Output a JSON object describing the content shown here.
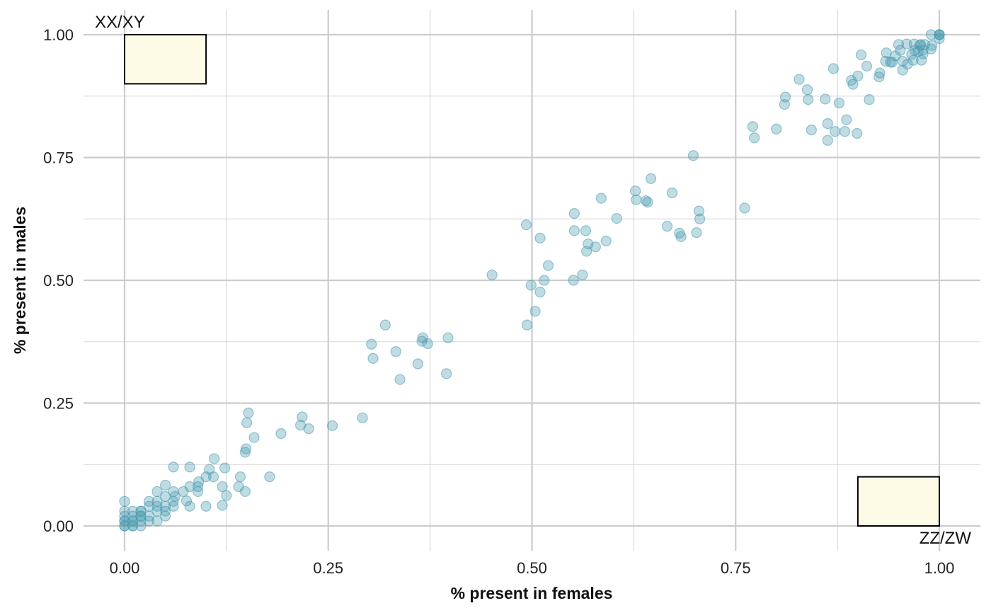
{
  "chart_data": {
    "type": "scatter",
    "xlabel": "% present in females",
    "ylabel": "% present in males",
    "xlim": [
      -0.05,
      1.05
    ],
    "ylim": [
      -0.05,
      1.05
    ],
    "x_ticks": [
      "0.00",
      "0.25",
      "0.50",
      "0.75",
      "1.00"
    ],
    "y_ticks": [
      "0.00",
      "0.25",
      "0.50",
      "0.75",
      "1.00"
    ],
    "grid": true,
    "point_color": "#4a9bb0",
    "box_fill": "#fdfbe6",
    "annotations": [
      {
        "label": "XX/XY",
        "x_range": [
          0.0,
          0.1
        ],
        "y_range": [
          0.9,
          1.0
        ]
      },
      {
        "label": "ZZ/ZW",
        "x_range": [
          0.9,
          1.0
        ],
        "y_range": [
          0.0,
          0.1
        ]
      }
    ],
    "points": [
      [
        0,
        0
      ],
      [
        0,
        0
      ],
      [
        0,
        0.01
      ],
      [
        0,
        0.01
      ],
      [
        0,
        0.02
      ],
      [
        0,
        0.03
      ],
      [
        0,
        0.05
      ],
      [
        0.01,
        0
      ],
      [
        0.01,
        0
      ],
      [
        0.01,
        0.01
      ],
      [
        0.01,
        0.01
      ],
      [
        0.01,
        0.02
      ],
      [
        0.01,
        0.03
      ],
      [
        0.02,
        0
      ],
      [
        0.02,
        0.01
      ],
      [
        0.02,
        0.02
      ],
      [
        0.02,
        0.02
      ],
      [
        0.02,
        0.03
      ],
      [
        0.02,
        0.03
      ],
      [
        0.03,
        0.01
      ],
      [
        0.03,
        0.02
      ],
      [
        0.03,
        0.04
      ],
      [
        0.03,
        0.05
      ],
      [
        0.04,
        0.01
      ],
      [
        0.04,
        0.03
      ],
      [
        0.04,
        0.04
      ],
      [
        0.04,
        0.05
      ],
      [
        0.04,
        0.07
      ],
      [
        0.05,
        0.02
      ],
      [
        0.05,
        0.03
      ],
      [
        0.05,
        0.04
      ],
      [
        0.05,
        0.06
      ],
      [
        0.05,
        0.083
      ],
      [
        0.06,
        0.04
      ],
      [
        0.06,
        0.05
      ],
      [
        0.06,
        0.07
      ],
      [
        0.06,
        0.12
      ],
      [
        0.062,
        0.06
      ],
      [
        0.072,
        0.07
      ],
      [
        0.076,
        0.051
      ],
      [
        0.08,
        0.04
      ],
      [
        0.08,
        0.08
      ],
      [
        0.08,
        0.12
      ],
      [
        0.09,
        0.07
      ],
      [
        0.09,
        0.08
      ],
      [
        0.091,
        0.09
      ],
      [
        0.1,
        0.1
      ],
      [
        0.1,
        0.04
      ],
      [
        0.104,
        0.115
      ],
      [
        0.109,
        0.1
      ],
      [
        0.11,
        0.137
      ],
      [
        0.12,
        0.08
      ],
      [
        0.12,
        0.042
      ],
      [
        0.123,
        0.118
      ],
      [
        0.125,
        0.062
      ],
      [
        0.14,
        0.08
      ],
      [
        0.142,
        0.1
      ],
      [
        0.148,
        0.07
      ],
      [
        0.148,
        0.15
      ],
      [
        0.149,
        0.157
      ],
      [
        0.15,
        0.21
      ],
      [
        0.152,
        0.23
      ],
      [
        0.159,
        0.18
      ],
      [
        0.178,
        0.1
      ],
      [
        0.192,
        0.188
      ],
      [
        0.216,
        0.205
      ],
      [
        0.218,
        0.222
      ],
      [
        0.226,
        0.198
      ],
      [
        0.255,
        0.204
      ],
      [
        0.292,
        0.22
      ],
      [
        0.303,
        0.37
      ],
      [
        0.305,
        0.341
      ],
      [
        0.32,
        0.409
      ],
      [
        0.333,
        0.355
      ],
      [
        0.338,
        0.298
      ],
      [
        0.36,
        0.33
      ],
      [
        0.365,
        0.376
      ],
      [
        0.366,
        0.383
      ],
      [
        0.372,
        0.371
      ],
      [
        0.395,
        0.31
      ],
      [
        0.397,
        0.383
      ],
      [
        0.451,
        0.511
      ],
      [
        0.493,
        0.613
      ],
      [
        0.494,
        0.409
      ],
      [
        0.499,
        0.49
      ],
      [
        0.504,
        0.437
      ],
      [
        0.51,
        0.476
      ],
      [
        0.51,
        0.586
      ],
      [
        0.515,
        0.5
      ],
      [
        0.52,
        0.53
      ],
      [
        0.551,
        0.5
      ],
      [
        0.552,
        0.601
      ],
      [
        0.552,
        0.636
      ],
      [
        0.562,
        0.511
      ],
      [
        0.566,
        0.601
      ],
      [
        0.567,
        0.559
      ],
      [
        0.569,
        0.574
      ],
      [
        0.578,
        0.568
      ],
      [
        0.585,
        0.667
      ],
      [
        0.591,
        0.58
      ],
      [
        0.604,
        0.626
      ],
      [
        0.627,
        0.682
      ],
      [
        0.628,
        0.664
      ],
      [
        0.64,
        0.662
      ],
      [
        0.642,
        0.659
      ],
      [
        0.646,
        0.707
      ],
      [
        0.666,
        0.61
      ],
      [
        0.672,
        0.678
      ],
      [
        0.681,
        0.596
      ],
      [
        0.683,
        0.589
      ],
      [
        0.698,
        0.754
      ],
      [
        0.702,
        0.597
      ],
      [
        0.705,
        0.641
      ],
      [
        0.706,
        0.625
      ],
      [
        0.761,
        0.647
      ],
      [
        0.771,
        0.813
      ],
      [
        0.773,
        0.79
      ],
      [
        0.8,
        0.808
      ],
      [
        0.81,
        0.858
      ],
      [
        0.811,
        0.873
      ],
      [
        0.828,
        0.909
      ],
      [
        0.838,
        0.888
      ],
      [
        0.839,
        0.868
      ],
      [
        0.843,
        0.806
      ],
      [
        0.86,
        0.869
      ],
      [
        0.863,
        0.819
      ],
      [
        0.863,
        0.785
      ],
      [
        0.87,
        0.931
      ],
      [
        0.872,
        0.803
      ],
      [
        0.877,
        0.861
      ],
      [
        0.884,
        0.803
      ],
      [
        0.886,
        0.827
      ],
      [
        0.892,
        0.907
      ],
      [
        0.894,
        0.899
      ],
      [
        0.899,
        0.799
      ],
      [
        0.9,
        0.916
      ],
      [
        0.904,
        0.959
      ],
      [
        0.911,
        0.936
      ],
      [
        0.914,
        0.868
      ],
      [
        0.926,
        0.914
      ],
      [
        0.927,
        0.922
      ],
      [
        0.934,
        0.946
      ],
      [
        0.935,
        0.963
      ],
      [
        0.94,
        0.944
      ],
      [
        0.942,
        0.944
      ],
      [
        0.946,
        0.957
      ],
      [
        0.95,
        0.98
      ],
      [
        0.952,
        0.968
      ],
      [
        0.955,
        0.928
      ],
      [
        0.955,
        0.946
      ],
      [
        0.96,
        0.981
      ],
      [
        0.961,
        0.94
      ],
      [
        0.966,
        0.96
      ],
      [
        0.968,
        0.948
      ],
      [
        0.969,
        0.981
      ],
      [
        0.97,
        0.968
      ],
      [
        0.974,
        0.966
      ],
      [
        0.976,
        0.978
      ],
      [
        0.977,
        0.98
      ],
      [
        0.978,
        0.948
      ],
      [
        0.98,
        0.961
      ],
      [
        0.98,
        0.969
      ],
      [
        0.982,
        0.98
      ],
      [
        0.99,
        1.0
      ],
      [
        0.99,
        0.971
      ],
      [
        0.991,
        0.978
      ],
      [
        1.0,
        1.0
      ],
      [
        1.0,
        1.0
      ],
      [
        1.0,
        0.992
      ],
      [
        1.0,
        1.0
      ]
    ]
  }
}
